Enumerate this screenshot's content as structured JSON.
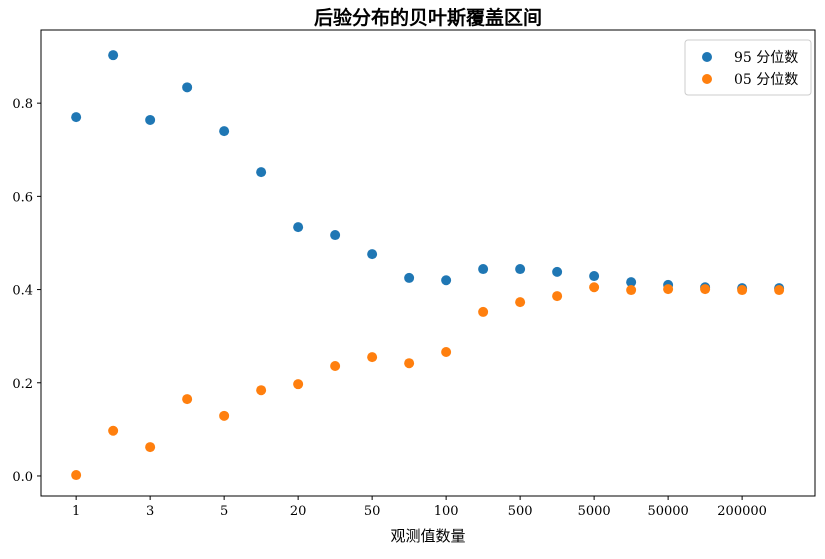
{
  "chart_data": {
    "type": "scatter",
    "title": "后验分布的贝叶斯覆盖区间",
    "xlabel": "观测值数量",
    "ylabel": "",
    "x_categories": [
      "1",
      "",
      "3",
      "",
      "5",
      "",
      "20",
      "",
      "50",
      "",
      "100",
      "",
      "500",
      "",
      "5000",
      "",
      "50000",
      "",
      "200000",
      ""
    ],
    "xtick_labels": [
      "1",
      "3",
      "5",
      "20",
      "50",
      "100",
      "500",
      "5000",
      "50000",
      "200000"
    ],
    "yticks": [
      "0.0",
      "0.2",
      "0.4",
      "0.6",
      "0.8"
    ],
    "ylim": [
      -0.043,
      0.957
    ],
    "grid": false,
    "legend": "top-right",
    "series": [
      {
        "name": "95 分位数",
        "color": "#1f77b4",
        "values": [
          0.77,
          0.903,
          0.764,
          0.834,
          0.74,
          0.652,
          0.534,
          0.517,
          0.476,
          0.425,
          0.42,
          0.444,
          0.444,
          0.438,
          0.429,
          0.416,
          0.41,
          0.405,
          0.403,
          0.403
        ]
      },
      {
        "name": "05 分位数",
        "color": "#ff7f0e",
        "values": [
          0.002,
          0.097,
          0.062,
          0.165,
          0.129,
          0.184,
          0.197,
          0.236,
          0.255,
          0.242,
          0.266,
          0.352,
          0.373,
          0.386,
          0.405,
          0.399,
          0.401,
          0.401,
          0.399,
          0.399
        ]
      }
    ]
  }
}
